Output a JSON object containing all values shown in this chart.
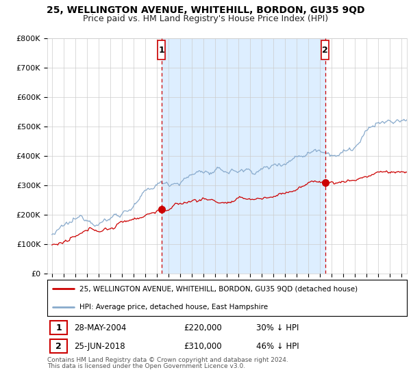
{
  "title": "25, WELLINGTON AVENUE, WHITEHILL, BORDON, GU35 9QD",
  "subtitle": "Price paid vs. HM Land Registry's House Price Index (HPI)",
  "ylabel_ticks": [
    "£0",
    "£100K",
    "£200K",
    "£300K",
    "£400K",
    "£500K",
    "£600K",
    "£700K",
    "£800K"
  ],
  "ytick_vals": [
    0,
    100000,
    200000,
    300000,
    400000,
    500000,
    600000,
    700000,
    800000
  ],
  "ylim": [
    0,
    800000
  ],
  "xlim_start": 1994.6,
  "xlim_end": 2025.5,
  "marker1_x": 2004.4,
  "marker1_y": 220000,
  "marker2_x": 2018.47,
  "marker2_y": 310000,
  "line1_color": "#cc0000",
  "line2_color": "#88aacc",
  "shade_color": "#ddeeff",
  "marker_color": "#cc0000",
  "legend_line1": "25, WELLINGTON AVENUE, WHITEHILL, BORDON, GU35 9QD (detached house)",
  "legend_line2": "HPI: Average price, detached house, East Hampshire",
  "marker1_date": "28-MAY-2004",
  "marker1_price": "£220,000",
  "marker1_hpi": "30% ↓ HPI",
  "marker2_date": "25-JUN-2018",
  "marker2_price": "£310,000",
  "marker2_hpi": "46% ↓ HPI",
  "footer1": "Contains HM Land Registry data © Crown copyright and database right 2024.",
  "footer2": "This data is licensed under the Open Government Licence v3.0.",
  "bg_color": "#ffffff",
  "grid_color": "#cccccc",
  "title_fontsize": 10,
  "subtitle_fontsize": 9
}
